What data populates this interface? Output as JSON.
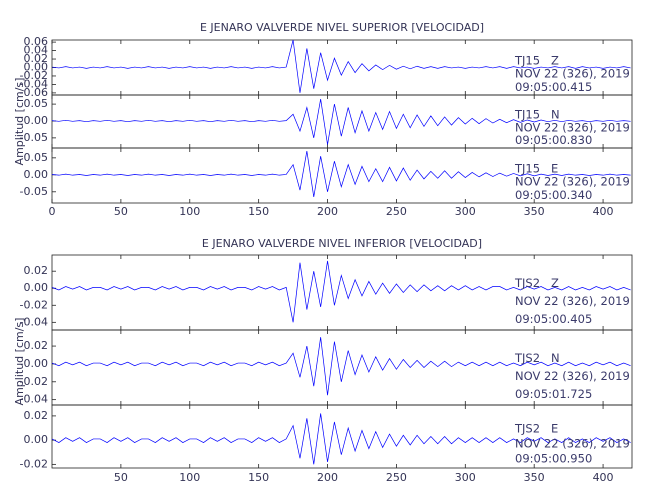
{
  "chart_data": [
    {
      "type": "line",
      "title": "E JENARO VALVERDE NIVEL SUPERIOR [VELOCIDAD]",
      "y_label": "Amplitud [cm/s]",
      "color": "#0000ff",
      "xlim": [
        0,
        421
      ],
      "xticks": [
        0,
        50,
        100,
        150,
        200,
        250,
        300,
        350,
        400
      ],
      "x": [
        0,
        5,
        10,
        15,
        20,
        25,
        30,
        35,
        40,
        45,
        50,
        55,
        60,
        65,
        70,
        75,
        80,
        85,
        90,
        95,
        100,
        105,
        110,
        115,
        120,
        125,
        130,
        135,
        140,
        145,
        150,
        155,
        160,
        165,
        170,
        175,
        180,
        185,
        190,
        195,
        200,
        205,
        210,
        215,
        220,
        225,
        230,
        235,
        240,
        245,
        250,
        255,
        260,
        265,
        270,
        275,
        280,
        285,
        290,
        295,
        300,
        305,
        310,
        315,
        320,
        325,
        330,
        335,
        340,
        345,
        350,
        355,
        360,
        365,
        370,
        375,
        380,
        385,
        390,
        395,
        400,
        405,
        410,
        415,
        420
      ],
      "panels": [
        {
          "station": "TJ15   Z",
          "date": "NOV 22 (326), 2019",
          "time": "09:05:00.415",
          "ylim": [
            -0.065,
            0.065
          ],
          "yticks": [
            0.06,
            0.04,
            0.02,
            {
              "value": 0,
              "label": "0.00"
            },
            -0.02,
            -0.04,
            -0.06
          ],
          "values": [
            0.001,
            -0.001,
            0.002,
            -0.001,
            0.001,
            -0.002,
            0.001,
            -0.001,
            0.002,
            -0.001,
            0.001,
            -0.002,
            0.001,
            -0.001,
            0.002,
            -0.001,
            0.001,
            -0.002,
            0.001,
            -0.001,
            0.002,
            -0.001,
            0.001,
            -0.002,
            0.001,
            -0.001,
            0.002,
            -0.001,
            0.001,
            -0.002,
            0.001,
            -0.001,
            0.002,
            -0.001,
            0.001,
            0.065,
            -0.06,
            0.045,
            -0.05,
            0.035,
            -0.03,
            0.022,
            -0.018,
            0.014,
            -0.012,
            0.009,
            -0.008,
            0.006,
            -0.005,
            0.005,
            -0.004,
            0.003,
            -0.003,
            0.003,
            -0.002,
            0.002,
            -0.002,
            0.002,
            -0.001,
            0.001,
            -0.002,
            0.001,
            -0.001,
            0.002,
            -0.001,
            0.002,
            -0.002,
            0.002,
            -0.001,
            0.001,
            -0.002,
            0.001,
            -0.001,
            0.002,
            -0.001,
            0.002,
            -0.002,
            0.002,
            -0.001,
            0.001,
            -0.002,
            0.001,
            -0.001,
            0.002,
            -0.001
          ]
        },
        {
          "station": "TJ15   N",
          "date": "NOV 22 (326), 2019",
          "time": "09:05:00.830",
          "ylim": [
            -0.08,
            0.077
          ],
          "yticks": [
            0.05,
            {
              "value": 0,
              "label": "0.00"
            },
            -0.05
          ],
          "values": [
            0.001,
            -0.001,
            0.002,
            -0.001,
            0.001,
            -0.002,
            0.001,
            -0.001,
            0.002,
            -0.001,
            0.001,
            -0.002,
            0.001,
            -0.001,
            0.002,
            -0.001,
            0.001,
            -0.002,
            0.001,
            -0.001,
            0.002,
            -0.001,
            0.001,
            -0.002,
            0.001,
            -0.001,
            0.002,
            -0.001,
            0.001,
            -0.002,
            0.001,
            -0.001,
            0.002,
            -0.001,
            0.001,
            0.02,
            -0.03,
            0.04,
            -0.05,
            0.065,
            -0.07,
            0.05,
            -0.045,
            0.04,
            -0.035,
            0.03,
            -0.03,
            0.025,
            -0.025,
            0.028,
            -0.022,
            0.02,
            -0.02,
            0.018,
            -0.016,
            0.015,
            -0.014,
            0.012,
            -0.012,
            0.01,
            -0.009,
            0.008,
            -0.008,
            0.007,
            -0.006,
            0.005,
            -0.005,
            0.004,
            -0.004,
            0.003,
            -0.003,
            0.003,
            -0.002,
            0.002,
            -0.002,
            0.002,
            -0.001,
            0.001,
            -0.002,
            0.001,
            -0.001,
            0.002,
            -0.001,
            0.001,
            -0.001
          ]
        },
        {
          "station": "TJ15   E",
          "date": "NOV 22 (326), 2019",
          "time": "09:05:00.340",
          "ylim": [
            -0.083,
            0.079
          ],
          "yticks": [
            0.05,
            {
              "value": 0,
              "label": "0.00"
            },
            -0.05
          ],
          "values": [
            0.001,
            -0.001,
            0.002,
            -0.001,
            0.001,
            -0.002,
            0.001,
            -0.001,
            0.002,
            -0.001,
            0.001,
            -0.002,
            0.001,
            -0.001,
            0.002,
            -0.001,
            0.001,
            -0.002,
            0.001,
            -0.001,
            0.002,
            -0.001,
            0.001,
            -0.002,
            0.001,
            -0.001,
            0.002,
            -0.001,
            0.001,
            -0.002,
            0.001,
            -0.001,
            0.002,
            -0.001,
            0.001,
            0.03,
            -0.045,
            0.07,
            -0.065,
            0.055,
            -0.05,
            0.04,
            -0.035,
            0.03,
            -0.028,
            0.025,
            -0.02,
            0.018,
            -0.02,
            0.022,
            -0.018,
            0.02,
            -0.016,
            0.014,
            -0.012,
            0.01,
            -0.01,
            0.012,
            -0.01,
            0.009,
            -0.008,
            0.007,
            -0.006,
            0.006,
            -0.005,
            0.005,
            -0.004,
            0.004,
            -0.003,
            0.003,
            -0.003,
            0.002,
            -0.002,
            0.002,
            -0.002,
            0.002,
            -0.001,
            0.001,
            -0.002,
            0.001,
            -0.001,
            0.002,
            -0.001,
            0.001,
            -0.001
          ]
        }
      ]
    },
    {
      "type": "line",
      "title": "E JENARO VALVERDE NIVEL INFERIOR [VELOCIDAD]",
      "y_label": "Amplitud [cm/s]",
      "color": "#0000ff",
      "xlim": [
        0,
        421
      ],
      "xticks": [
        50,
        100,
        150,
        200,
        250,
        300,
        350,
        400
      ],
      "x": [
        0,
        5,
        10,
        15,
        20,
        25,
        30,
        35,
        40,
        45,
        50,
        55,
        60,
        65,
        70,
        75,
        80,
        85,
        90,
        95,
        100,
        105,
        110,
        115,
        120,
        125,
        130,
        135,
        140,
        145,
        150,
        155,
        160,
        165,
        170,
        175,
        180,
        185,
        190,
        195,
        200,
        205,
        210,
        215,
        220,
        225,
        230,
        235,
        240,
        245,
        250,
        255,
        260,
        265,
        270,
        275,
        280,
        285,
        290,
        295,
        300,
        305,
        310,
        315,
        320,
        325,
        330,
        335,
        340,
        345,
        350,
        355,
        360,
        365,
        370,
        375,
        380,
        385,
        390,
        395,
        400,
        405,
        410,
        415,
        420
      ],
      "panels": [
        {
          "station": "TJS2   Z",
          "date": "NOV 22 (326), 2019",
          "time": "09:05:00.405",
          "ylim": [
            -0.049,
            0.039
          ],
          "yticks": [
            0.02,
            {
              "value": 0,
              "label": "0.00"
            },
            -0.02,
            -0.04
          ],
          "values": [
            0.001,
            -0.002,
            0.002,
            -0.001,
            0.002,
            -0.002,
            0.001,
            0.001,
            -0.002,
            0.002,
            -0.001,
            0.002,
            -0.002,
            0.001,
            0.001,
            -0.002,
            0.002,
            -0.001,
            0.002,
            -0.002,
            0.001,
            0.001,
            -0.002,
            0.002,
            -0.001,
            0.002,
            -0.002,
            0.001,
            0.001,
            -0.002,
            0.002,
            -0.001,
            0.002,
            -0.002,
            0.001,
            -0.04,
            0.03,
            -0.025,
            0.02,
            -0.022,
            0.032,
            -0.02,
            0.015,
            -0.012,
            0.01,
            -0.009,
            0.008,
            -0.007,
            0.006,
            -0.006,
            0.005,
            -0.005,
            0.004,
            -0.004,
            0.004,
            -0.003,
            0.003,
            -0.003,
            0.003,
            -0.002,
            0.003,
            -0.002,
            0.002,
            -0.002,
            0.002,
            0.002,
            -0.002,
            0.001,
            -0.002,
            0.002,
            -0.001,
            0.002,
            -0.002,
            0.001,
            -0.002,
            0.002,
            -0.002,
            0.001,
            -0.002,
            0.002,
            -0.001,
            0.002,
            -0.002,
            0.001,
            -0.002
          ]
        },
        {
          "station": "TJS2   N",
          "date": "NOV 22 (326), 2019",
          "time": "09:05:01.725",
          "ylim": [
            -0.046,
            0.038
          ],
          "yticks": [
            0.02,
            {
              "value": 0,
              "label": "0.00"
            },
            -0.02,
            -0.04
          ],
          "values": [
            0.001,
            -0.002,
            0.002,
            -0.001,
            0.002,
            -0.002,
            0.001,
            0.001,
            -0.002,
            0.002,
            -0.001,
            0.002,
            -0.002,
            0.001,
            0.001,
            -0.002,
            0.002,
            -0.001,
            0.002,
            -0.002,
            0.001,
            0.001,
            -0.002,
            0.002,
            -0.001,
            0.002,
            -0.002,
            0.001,
            0.001,
            -0.002,
            0.002,
            -0.001,
            0.002,
            -0.002,
            0.001,
            0.012,
            -0.015,
            0.02,
            -0.025,
            0.03,
            -0.035,
            0.025,
            -0.02,
            0.015,
            -0.012,
            0.01,
            -0.009,
            0.008,
            -0.007,
            0.006,
            -0.006,
            0.005,
            -0.004,
            0.004,
            -0.004,
            0.003,
            -0.003,
            0.003,
            -0.003,
            0.002,
            -0.002,
            0.002,
            -0.002,
            0.002,
            -0.002,
            0.002,
            -0.002,
            0.001,
            -0.002,
            0.002,
            -0.001,
            0.002,
            -0.002,
            0.001,
            -0.002,
            0.002,
            -0.002,
            0.001,
            -0.002,
            0.002,
            -0.001,
            0.002,
            -0.002,
            0.001,
            -0.002
          ]
        },
        {
          "station": "TJS2   E",
          "date": "NOV 22 (326), 2019",
          "time": "09:05:00.950",
          "ylim": [
            -0.023,
            0.029
          ],
          "yticks": [
            0.02,
            {
              "value": 0,
              "label": "0.00"
            },
            -0.02
          ],
          "values": [
            0.001,
            -0.002,
            0.002,
            -0.001,
            0.002,
            -0.002,
            0.001,
            0.001,
            -0.002,
            0.002,
            -0.001,
            0.002,
            -0.002,
            0.001,
            0.001,
            -0.002,
            0.002,
            -0.001,
            0.002,
            -0.002,
            0.001,
            0.001,
            -0.002,
            0.002,
            -0.001,
            0.002,
            -0.002,
            0.001,
            0.001,
            -0.002,
            0.002,
            -0.001,
            0.002,
            -0.002,
            0.001,
            0.012,
            -0.015,
            0.018,
            -0.02,
            0.022,
            -0.018,
            0.015,
            -0.012,
            0.01,
            -0.009,
            0.008,
            -0.007,
            0.007,
            -0.006,
            0.005,
            -0.005,
            0.004,
            -0.004,
            0.004,
            -0.003,
            0.003,
            -0.003,
            0.003,
            -0.003,
            0.002,
            -0.002,
            0.002,
            -0.002,
            0.002,
            -0.002,
            0.002,
            -0.002,
            0.001,
            -0.002,
            0.002,
            -0.001,
            0.002,
            -0.002,
            0.001,
            -0.002,
            0.002,
            -0.002,
            0.001,
            -0.002,
            0.002,
            -0.001,
            0.002,
            -0.002,
            0.001,
            -0.002
          ]
        }
      ]
    }
  ]
}
